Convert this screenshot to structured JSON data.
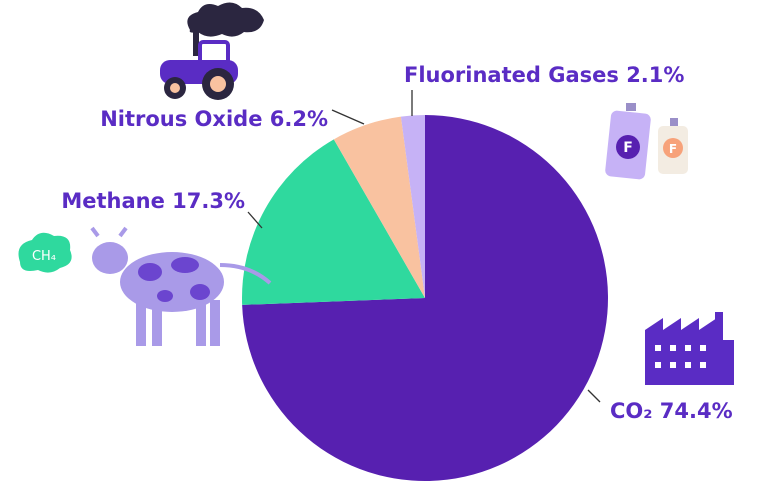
{
  "chart_data": {
    "type": "pie",
    "categories": [
      "CO₂",
      "Methane",
      "Nitrous Oxide",
      "Fluorinated Gases"
    ],
    "values": [
      74.4,
      17.3,
      6.2,
      2.1
    ],
    "value_labels": [
      "74.4%",
      "17.3%",
      "6.2%",
      "2.1%"
    ],
    "colors": [
      "#5720b0",
      "#2fd99e",
      "#f9c2a0",
      "#c6b2f6"
    ],
    "annotations": [
      "CH₄",
      "F",
      "F"
    ]
  }
}
